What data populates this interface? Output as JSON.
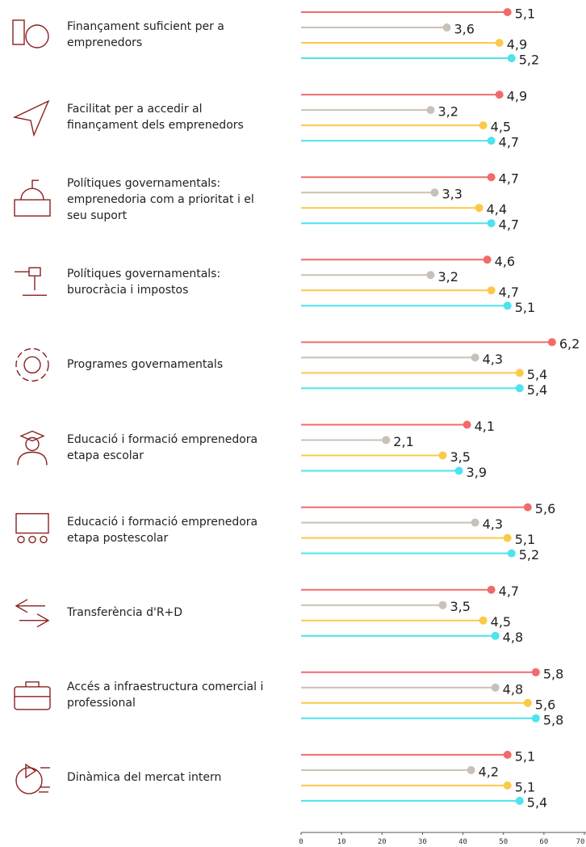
{
  "chart_data": {
    "type": "lollipop",
    "categories": [
      "Finançament suficient per a emprenedors",
      "Facilitat per a accedir al finançament dels emprenedors",
      "Polítiques governamentals: emprenedoria com a prioritat i el seu suport",
      "Polítiques governamentals: burocràcia i impostos",
      "Programes governamentals",
      "Educació i formació emprenedora etapa escolar",
      "Educació i formació emprenedora etapa postescolar",
      "Transferència d'R+D",
      "Accés a infraestructura comercial i professional",
      "Dinàmica del mercat intern"
    ],
    "series": [
      {
        "color": "#f26b6b",
        "values": [
          5.1,
          4.9,
          4.7,
          4.6,
          6.2,
          4.1,
          5.6,
          4.7,
          5.8,
          5.1
        ],
        "value_labels": [
          "5,1",
          "4,9",
          "4,7",
          "4,6",
          "6,2",
          "4,1",
          "5,6",
          "4,7",
          "5,8",
          "5,1"
        ]
      },
      {
        "color": "#c9c1b7",
        "values": [
          3.6,
          3.2,
          3.3,
          3.2,
          4.3,
          2.1,
          4.3,
          3.5,
          4.8,
          4.2
        ],
        "value_labels": [
          "3,6",
          "3,2",
          "3,3",
          "3,2",
          "4,3",
          "2,1",
          "4,3",
          "3,5",
          "4,8",
          "4,2"
        ]
      },
      {
        "color": "#fbc94a",
        "values": [
          4.9,
          4.5,
          4.4,
          4.7,
          5.4,
          3.5,
          5.1,
          4.5,
          5.6,
          5.1
        ],
        "value_labels": [
          "4,9",
          "4,5",
          "4,4",
          "4,7",
          "5,4",
          "3,5",
          "5,1",
          "4,5",
          "5,6",
          "5,1"
        ]
      },
      {
        "color": "#4de3f0",
        "values": [
          5.2,
          4.7,
          4.7,
          5.1,
          5.4,
          3.9,
          5.2,
          4.8,
          5.8,
          5.4
        ],
        "value_labels": [
          "5,2",
          "4,7",
          "4,7",
          "5,1",
          "5,4",
          "3,9",
          "5,2",
          "4,8",
          "5,8",
          "5,4"
        ]
      }
    ],
    "xlim": [
      0,
      7
    ],
    "xticks": [
      {
        "value": 0,
        "label": "0"
      },
      {
        "value": 1,
        "label": "10"
      },
      {
        "value": 2,
        "label": "20"
      },
      {
        "value": 3,
        "label": "30"
      },
      {
        "value": 4,
        "label": "40"
      },
      {
        "value": 5,
        "label": "50"
      },
      {
        "value": 6,
        "label": "60"
      },
      {
        "value": 7,
        "label": "70"
      }
    ]
  }
}
